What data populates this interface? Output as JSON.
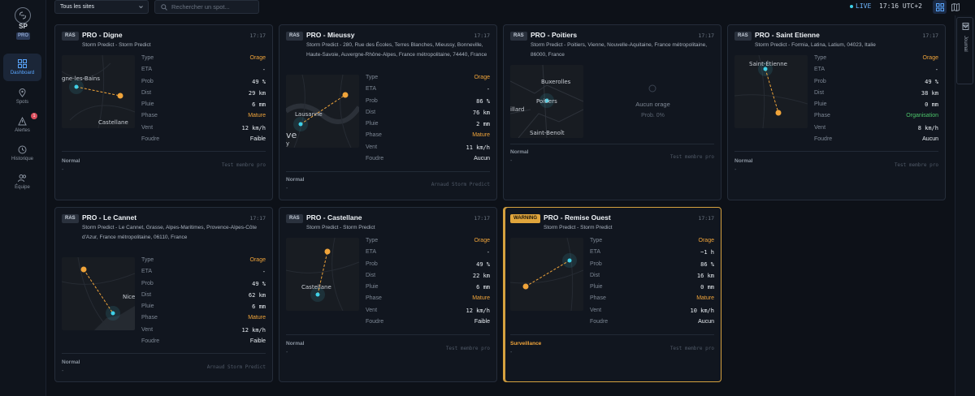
{
  "sidebar": {
    "brand": "SP",
    "badge": "PRO",
    "items": [
      {
        "label": "Dashboard",
        "icon": "grid-icon",
        "active": true
      },
      {
        "label": "Spots",
        "icon": "pin-icon"
      },
      {
        "label": "Alertes",
        "icon": "warning-icon",
        "badge": "1"
      },
      {
        "label": "Historique",
        "icon": "clock-icon"
      },
      {
        "label": "Équipe",
        "icon": "users-icon"
      }
    ]
  },
  "topbar": {
    "site_select": "Tous les sites",
    "search_placeholder": "Rechercher un spot...",
    "live": "LIVE",
    "clock": "17:16 UTC+2"
  },
  "journal": {
    "label": "Journal"
  },
  "colors": {
    "accent": "#5aa6ff",
    "orange": "#f0a43a",
    "green": "#4cc46a",
    "warning": "#e0a53c",
    "cyan": "#3fd1e8"
  },
  "labels": {
    "type": "Type",
    "eta": "ETA",
    "prob": "Prob",
    "dist": "Dist",
    "pluie": "Pluie",
    "phase": "Phase",
    "vent": "Vent",
    "foudre": "Foudre"
  },
  "cards": [
    {
      "tag": "RAS",
      "title": "PRO - Digne",
      "sub": "Storm Predict - Storm Predict",
      "time": "17:17",
      "type": "Orage",
      "eta": "-",
      "prob": "49 %",
      "dist": "29 km",
      "pluie": "6 mm",
      "phase": "Mature",
      "vent": "12 km/h",
      "foudre": "Faible",
      "status": "Normal",
      "dash": "-",
      "member": "Test membre pro",
      "map_labels": [
        "gne-les-Bains",
        "Castellane"
      ]
    },
    {
      "tag": "RAS",
      "title": "PRO - Mieussy",
      "sub": "Storm Predict - 280, Rue des Écoles, Terres Blanches, Mieussy, Bonneville, Haute-Savoie, Auvergne-Rhône-Alpes, France métropolitaine, 74440, France",
      "time": "17:17",
      "type": "Orage",
      "eta": "-",
      "prob": "86 %",
      "dist": "76 km",
      "pluie": "2 mm",
      "phase": "Mature",
      "vent": "11 km/h",
      "foudre": "Aucun",
      "status": "Normal",
      "dash": "-",
      "member": "Arnaud Storm Predict",
      "map_labels": [
        "Lausanne",
        "ve",
        "y"
      ]
    },
    {
      "tag": "RAS",
      "title": "PRO - Poitiers",
      "sub": "Storm Predict - Poitiers, Vienne, Nouvelle-Aquitaine, France métropolitaine, 86000, France",
      "time": "17:17",
      "no_storm": "Aucun orage",
      "no_prob": "Prob. 0%",
      "status": "Normal",
      "dash": "-",
      "member": "Test membre pro",
      "map_labels": [
        "Buxerolles",
        "Poitiers",
        "illard",
        "Saint-Benoît"
      ]
    },
    {
      "tag": "RAS",
      "title": "PRO - Saint Etienne",
      "sub": "Storm Predict - Formia, Latina, Latium, 04023, Italie",
      "time": "17:17",
      "type": "Orage",
      "eta": "-",
      "prob": "49 %",
      "dist": "38 km",
      "pluie": "0 mm",
      "phase": "Organisation",
      "vent": "8 km/h",
      "foudre": "Aucun",
      "status": "Normal",
      "dash": "-",
      "member": "Test membre pro",
      "map_labels": [
        "Saint-Étienne"
      ]
    },
    {
      "tag": "RAS",
      "title": "PRO - Le Cannet",
      "sub": "Storm Predict - Le Cannet, Grasse, Alpes-Maritimes, Provence-Alpes-Côte d'Azur, France métropolitaine, 06110, France",
      "time": "17:17",
      "type": "Orage",
      "eta": "-",
      "prob": "49 %",
      "dist": "62 km",
      "pluie": "6 mm",
      "phase": "Mature",
      "vent": "12 km/h",
      "foudre": "Faible",
      "status": "Normal",
      "dash": "-",
      "member": "Arnaud Storm Predict",
      "map_labels": [
        "Nice"
      ]
    },
    {
      "tag": "RAS",
      "title": "PRO - Castellane",
      "sub": "Storm Predict - Storm Predict",
      "time": "17:17",
      "type": "Orage",
      "eta": "-",
      "prob": "49 %",
      "dist": "22 km",
      "pluie": "6 mm",
      "phase": "Mature",
      "vent": "12 km/h",
      "foudre": "Faible",
      "status": "Normal",
      "dash": "-",
      "member": "Test membre pro",
      "map_labels": [
        "Castellane"
      ]
    },
    {
      "tag": "WARNING",
      "title": "PRO - Remise Ouest",
      "sub": "Storm Predict - Storm Predict",
      "time": "17:17",
      "type": "Orage",
      "eta": "~1 h",
      "prob": "86 %",
      "dist": "16 km",
      "pluie": "0 mm",
      "phase": "Mature",
      "vent": "10 km/h",
      "foudre": "Aucun",
      "status": "Surveillance",
      "dash": "-",
      "member": "Test membre pro",
      "map_labels": []
    }
  ]
}
